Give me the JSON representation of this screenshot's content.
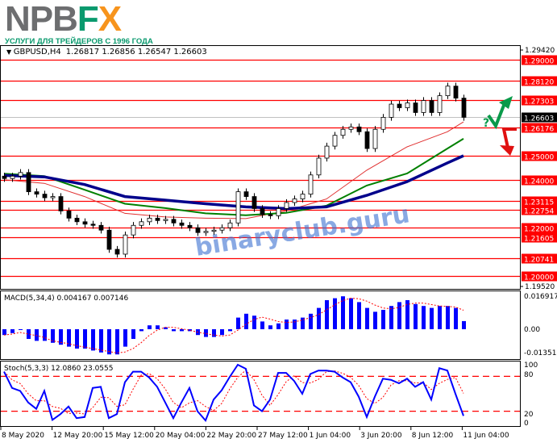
{
  "logo": {
    "brand_gray": "NPB",
    "brand_f": "F",
    "brand_x": "X",
    "tagline": "УСЛУГИ ДЛЯ ТРЕЙДЕРОВ С 1996 ГОДА"
  },
  "watermark": "binaryclub.guru",
  "colors": {
    "level": "#ff0000",
    "bull": "#ffffff",
    "bear": "#000000",
    "ma_fast": "#e03030",
    "ma_mid": "#008000",
    "ma_slow": "#00008b",
    "macd_hist": "#0000ff",
    "signal": "#ff0000",
    "up_arrow": "#0a9a4a",
    "down_arrow": "#e01010"
  },
  "chart_data": [
    {
      "type": "candlestick",
      "title": "GBPUSD,H4",
      "ohlc_readout": "1.26817 1.26856 1.26547 1.26603",
      "ylim": [
        1.1952,
        1.2942
      ],
      "y_tick_labels": [
        "1.29420",
        "1.19520"
      ],
      "current_price": "1.26603",
      "levels": [
        "1.29000",
        "1.28120",
        "1.27303",
        "1.26176",
        "1.25000",
        "1.24000",
        "1.23115",
        "1.22754",
        "1.22000",
        "1.21605",
        "1.20741",
        "1.20000"
      ],
      "x_tick_labels": [
        "8 May 2020",
        "12 May 20:00",
        "15 May 12:00",
        "20 May 04:00",
        "22 May 20:00",
        "27 May 12:00",
        "1 Jun 04:00",
        "3 Jun 20:00",
        "8 Jun 12:00",
        "11 Jun 04:00"
      ],
      "close": [
        1.2405,
        1.2415,
        1.243,
        1.235,
        1.234,
        1.2325,
        1.233,
        1.227,
        1.224,
        1.2225,
        1.2215,
        1.221,
        1.219,
        1.211,
        1.209,
        1.217,
        1.221,
        1.2225,
        1.224,
        1.223,
        1.2235,
        1.222,
        1.221,
        1.22,
        1.218,
        1.2185,
        1.219,
        1.22,
        1.222,
        1.235,
        1.233,
        1.228,
        1.2255,
        1.225,
        1.228,
        1.2305,
        1.232,
        1.234,
        1.242,
        1.249,
        1.254,
        1.2585,
        1.261,
        1.262,
        1.26,
        1.253,
        1.261,
        1.266,
        1.2715,
        1.27,
        1.272,
        1.268,
        1.273,
        1.268,
        1.275,
        1.279,
        1.274,
        1.266
      ],
      "ma_fast": [
        1.24,
        1.2385,
        1.233,
        1.226,
        1.2245,
        1.224,
        1.2238,
        1.227,
        1.232,
        1.244,
        1.2537,
        1.26,
        1.2641
      ],
      "ma_mid": [
        1.2425,
        1.2415,
        1.2358,
        1.23,
        1.2282,
        1.226,
        1.2252,
        1.2262,
        1.2292,
        1.2376,
        1.2426,
        1.253,
        1.2571
      ],
      "ma_slow": [
        1.2418,
        1.2412,
        1.238,
        1.233,
        1.2315,
        1.23,
        1.2287,
        1.228,
        1.2287,
        1.2335,
        1.2392,
        1.247,
        1.25
      ]
    },
    {
      "type": "bar",
      "title": "MACD(5,34,4) 0.004167 0.007146",
      "y_tick_labels": [
        "0.016917",
        "0.00",
        "-0.013516"
      ],
      "ylim": [
        -0.0155,
        0.019
      ],
      "values": [
        -0.003,
        -0.002,
        0.0,
        -0.005,
        -0.006,
        -0.006,
        -0.007,
        -0.008,
        -0.009,
        -0.01,
        -0.01,
        -0.011,
        -0.012,
        -0.013,
        -0.013,
        -0.009,
        -0.005,
        -0.001,
        0.002,
        0.002,
        0.001,
        -0.001,
        -0.001,
        -0.001,
        -0.003,
        -0.004,
        -0.004,
        -0.003,
        -0.001,
        0.006,
        0.008,
        0.007,
        0.004,
        0.002,
        0.003,
        0.005,
        0.005,
        0.006,
        0.008,
        0.011,
        0.015,
        0.016,
        0.017,
        0.016,
        0.014,
        0.011,
        0.009,
        0.01,
        0.012,
        0.014,
        0.015,
        0.013,
        0.012,
        0.011,
        0.012,
        0.012,
        0.011,
        0.0042
      ]
    },
    {
      "type": "line",
      "title": "Stoch(5,3,3) 12.0860 23.0555",
      "y_tick_labels": [
        "100",
        "80",
        "20",
        "0"
      ],
      "ylim": [
        0,
        100
      ],
      "levels": [
        80,
        20
      ],
      "values": [
        88,
        60,
        55,
        35,
        24,
        55,
        5,
        15,
        28,
        8,
        10,
        60,
        62,
        8,
        15,
        70,
        88,
        88,
        78,
        62,
        35,
        8,
        35,
        60,
        20,
        4,
        40,
        56,
        79,
        100,
        93,
        30,
        20,
        40,
        86,
        86,
        72,
        50,
        84,
        90,
        90,
        88,
        78,
        70,
        45,
        10,
        45,
        76,
        74,
        68,
        76,
        62,
        70,
        40,
        94,
        90,
        50,
        12
      ]
    }
  ]
}
